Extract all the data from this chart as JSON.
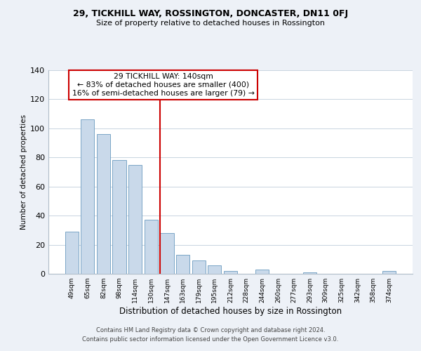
{
  "title1": "29, TICKHILL WAY, ROSSINGTON, DONCASTER, DN11 0FJ",
  "title2": "Size of property relative to detached houses in Rossington",
  "xlabel": "Distribution of detached houses by size in Rossington",
  "ylabel": "Number of detached properties",
  "bar_labels": [
    "49sqm",
    "65sqm",
    "82sqm",
    "98sqm",
    "114sqm",
    "130sqm",
    "147sqm",
    "163sqm",
    "179sqm",
    "195sqm",
    "212sqm",
    "228sqm",
    "244sqm",
    "260sqm",
    "277sqm",
    "293sqm",
    "309sqm",
    "325sqm",
    "342sqm",
    "358sqm",
    "374sqm"
  ],
  "bar_values": [
    29,
    106,
    96,
    78,
    75,
    37,
    28,
    13,
    9,
    6,
    2,
    0,
    3,
    0,
    0,
    1,
    0,
    0,
    0,
    0,
    2
  ],
  "bar_color": "#c9d9ea",
  "bar_edge_color": "#6a9abf",
  "vline_color": "#cc0000",
  "ylim": [
    0,
    140
  ],
  "yticks": [
    0,
    20,
    40,
    60,
    80,
    100,
    120,
    140
  ],
  "annotation_title": "29 TICKHILL WAY: 140sqm",
  "annotation_line1": "← 83% of detached houses are smaller (400)",
  "annotation_line2": "16% of semi-detached houses are larger (79) →",
  "annotation_box_color": "#ffffff",
  "annotation_box_edge": "#cc0000",
  "footer1": "Contains HM Land Registry data © Crown copyright and database right 2024.",
  "footer2": "Contains public sector information licensed under the Open Government Licence v3.0.",
  "background_color": "#edf1f7",
  "plot_background": "#ffffff",
  "grid_color": "#c8d4e0"
}
